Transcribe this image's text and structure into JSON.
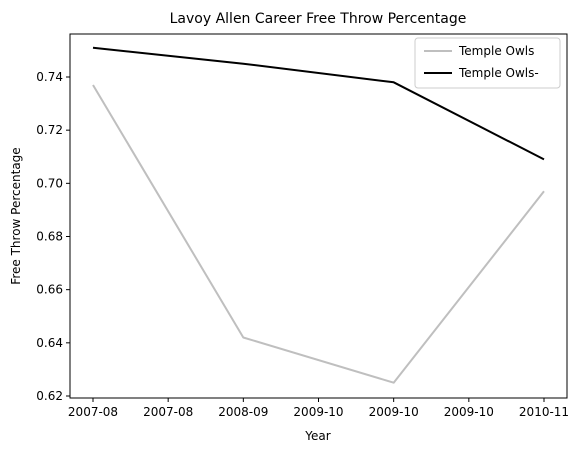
{
  "chart_data": {
    "type": "line",
    "title": "Lavoy Allen Career Free Throw Percentage",
    "xlabel": "Year",
    "ylabel": "Free Throw Percentage",
    "x_tick_labels": [
      "2007-08",
      "2007-08",
      "2008-09",
      "2009-10",
      "2009-10",
      "2009-10",
      "2010-11"
    ],
    "x_ticks": [
      0,
      0.5,
      1,
      1.5,
      2,
      2.5,
      3
    ],
    "x": [
      0,
      1,
      2,
      3
    ],
    "ylim": [
      0.62,
      0.755
    ],
    "y_ticks": [
      0.62,
      0.64,
      0.66,
      0.68,
      0.7,
      0.72,
      0.74
    ],
    "y_tick_labels": [
      "0.62",
      "0.64",
      "0.66",
      "0.68",
      "0.70",
      "0.72",
      "0.74"
    ],
    "grid": false,
    "legend_position": "upper right",
    "series": [
      {
        "name": "Temple Owls",
        "color": "#bfbfbf",
        "values": [
          0.737,
          0.642,
          0.625,
          0.697
        ]
      },
      {
        "name": "Temple Owls-",
        "color": "#000000",
        "values": [
          0.751,
          0.745,
          0.738,
          0.709
        ]
      }
    ]
  }
}
